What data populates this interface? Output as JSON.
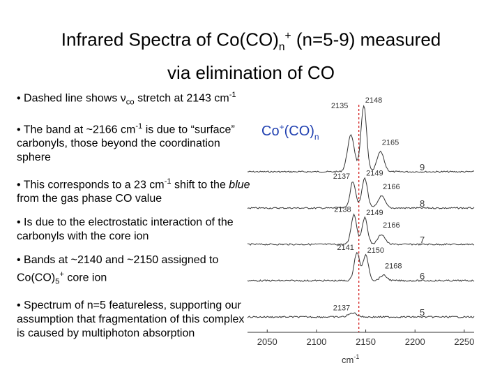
{
  "slide": {
    "title_line1_a": "Infrared Spectra of Co(CO)",
    "title_sub_n": "n",
    "title_sup_plus": "+",
    "title_line1_b": " (n=5-9) measured",
    "title_line2": "via elimination of CO",
    "bullets": [
      {
        "parts": [
          "• Dashed line shows ν",
          "co",
          " stretch at 2143 cm",
          "-1",
          ""
        ]
      },
      {
        "parts": [
          "• The band at ~2166 cm",
          "-1",
          " is due to “surface” carbonyls, those beyond the coordination sphere"
        ]
      },
      {
        "parts": [
          "• This corresponds to a 23 cm",
          "-1",
          " shift to the ",
          "blue",
          " from the gas phase CO value"
        ]
      },
      {
        "parts": [
          "• Is due to the electrostatic interaction of the carbonyls with the core ion"
        ]
      },
      {
        "parts": [
          "• Bands at ~2140 and ~2150 assigned to Co(CO)",
          "5",
          "+",
          " core ion"
        ]
      },
      {
        "parts": [
          "• Spectrum of n=5 featureless, supporting our assumption that fragmentation of this complex is caused by multiphoton absorption"
        ]
      }
    ]
  },
  "chart_data": {
    "type": "line",
    "label_main": "Co",
    "label_sup": "+",
    "label_mid": "(CO)",
    "label_sub": "n",
    "label_color": "#1f3fb0",
    "xlabel_main": "cm",
    "xlabel_sup": "-1",
    "xlim": [
      2030,
      2260
    ],
    "x_ticks": [
      2050,
      2100,
      2150,
      2200,
      2250
    ],
    "dashed_line_x": 2143,
    "dashed_line_color": "#d42020",
    "series": [
      {
        "name": "9",
        "baseline_y": 0.0,
        "peaks": [
          [
            2135,
            0.55,
            5
          ],
          [
            2148,
            1.0,
            4
          ],
          [
            2165,
            0.3,
            5
          ]
        ],
        "annotations": [
          {
            "text": "2135",
            "x": 2135
          },
          {
            "text": "2148",
            "x": 2148
          },
          {
            "text": "2165",
            "x": 2165
          }
        ]
      },
      {
        "name": "8",
        "baseline_y": 1.0,
        "peaks": [
          [
            2137,
            0.4,
            4
          ],
          [
            2149,
            0.45,
            4
          ],
          [
            2166,
            0.18,
            5
          ]
        ],
        "annotations": [
          {
            "text": "2137",
            "x": 2137
          },
          {
            "text": "2149",
            "x": 2149
          },
          {
            "text": "2166",
            "x": 2166
          }
        ]
      },
      {
        "name": "7",
        "baseline_y": 2.0,
        "peaks": [
          [
            2138,
            0.45,
            4
          ],
          [
            2149,
            0.4,
            4
          ],
          [
            2166,
            0.15,
            5
          ]
        ],
        "annotations": [
          {
            "text": "2138",
            "x": 2138
          },
          {
            "text": "2149",
            "x": 2149
          },
          {
            "text": "2166",
            "x": 2166
          }
        ]
      },
      {
        "name": "6",
        "baseline_y": 3.0,
        "peaks": [
          [
            2141,
            0.42,
            4
          ],
          [
            2150,
            0.38,
            4
          ],
          [
            2168,
            0.08,
            5
          ]
        ],
        "annotations": [
          {
            "text": "2141",
            "x": 2141
          },
          {
            "text": "2150",
            "x": 2150
          },
          {
            "text": "2168",
            "x": 2168
          }
        ]
      },
      {
        "name": "5",
        "baseline_y": 4.0,
        "peaks": [
          [
            2137,
            0.06,
            6
          ]
        ],
        "annotations": [
          {
            "text": "2137",
            "x": 2137
          }
        ]
      }
    ]
  }
}
